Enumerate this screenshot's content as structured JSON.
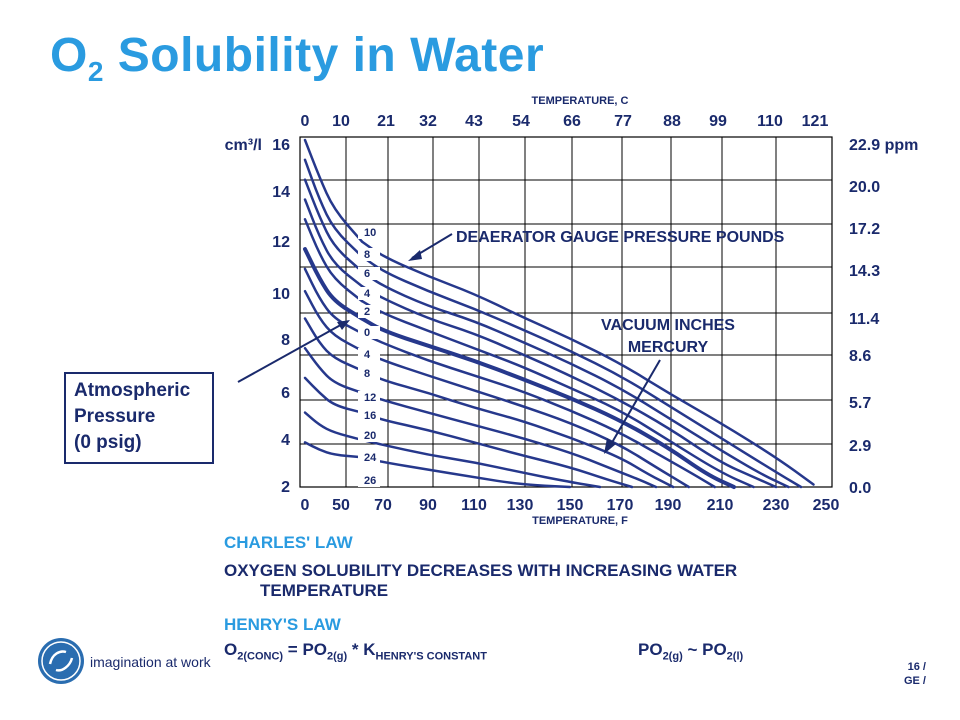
{
  "title": {
    "prefix": "O",
    "sub": "2",
    "rest": " Solubility in Water"
  },
  "chart_data": {
    "type": "line",
    "title": "",
    "x_top_label": "TEMPERATURE, C",
    "x_bottom_label": "TEMPERATURE, F",
    "x_bottom_ticks": [
      "0",
      "50",
      "70",
      "90",
      "110",
      "130",
      "150",
      "170",
      "190",
      "210",
      "230",
      "250"
    ],
    "x_top_ticks": [
      "0",
      "10",
      "21",
      "32",
      "43",
      "54",
      "66",
      "77",
      "88",
      "99",
      "110",
      "121"
    ],
    "y_left_ticks": [
      "2",
      "4",
      "6",
      "8",
      "10",
      "12",
      "14",
      "16"
    ],
    "y_left_unit": "cm³/l",
    "y_right_ticks": [
      "0.0",
      "2.9",
      "5.7",
      "8.6",
      "11.4",
      "14.3",
      "17.2",
      "20.0",
      "22.9 ppm"
    ],
    "ylim": [
      2,
      16
    ],
    "grid": true,
    "annotations": {
      "deaerator": "DEAERATOR GAUGE PRESSURE POUNDS",
      "vacuum_line1": "VACUUM INCHES",
      "vacuum_line2": "MERCURY"
    },
    "curve_labels": [
      "10",
      "8",
      "6",
      "4",
      "2",
      "0",
      "4",
      "8",
      "12",
      "16",
      "20",
      "24",
      "26"
    ],
    "series": [
      {
        "name": "10",
        "x": [
          60,
          70,
          90,
          110,
          130,
          150,
          170,
          190,
          210,
          230,
          245
        ],
        "y": [
          11.9,
          11.3,
          10.5,
          9.8,
          8.9,
          8.0,
          7.0,
          5.8,
          4.6,
          3.2,
          2.1
        ]
      },
      {
        "name": "8",
        "x": [
          60,
          70,
          90,
          110,
          130,
          150,
          170,
          190,
          210,
          230,
          240
        ],
        "y": [
          11.3,
          10.7,
          9.9,
          9.2,
          8.4,
          7.5,
          6.5,
          5.3,
          4.0,
          2.6,
          2.0
        ]
      },
      {
        "name": "6",
        "x": [
          60,
          70,
          90,
          110,
          130,
          150,
          170,
          190,
          210,
          225,
          235
        ],
        "y": [
          10.7,
          10.1,
          9.3,
          8.7,
          7.9,
          7.0,
          6.0,
          4.8,
          3.5,
          2.5,
          2.0
        ]
      },
      {
        "name": "4",
        "x": [
          60,
          70,
          90,
          110,
          130,
          150,
          170,
          190,
          210,
          222,
          230
        ],
        "y": [
          10.1,
          9.6,
          8.8,
          8.2,
          7.4,
          6.5,
          5.5,
          4.4,
          3.0,
          2.4,
          2.0
        ]
      },
      {
        "name": "2",
        "x": [
          60,
          70,
          90,
          110,
          130,
          150,
          170,
          190,
          210,
          222
        ],
        "y": [
          9.5,
          9.0,
          8.3,
          7.6,
          6.9,
          6.0,
          5.1,
          3.9,
          2.6,
          2.0
        ]
      },
      {
        "name": "0",
        "x": [
          60,
          70,
          90,
          110,
          130,
          150,
          170,
          190,
          205,
          215
        ],
        "y": [
          8.8,
          8.3,
          7.7,
          7.1,
          6.4,
          5.6,
          4.7,
          3.6,
          2.5,
          2.0
        ]
      },
      {
        "name": "4",
        "x": [
          60,
          70,
          90,
          110,
          130,
          150,
          170,
          190,
          200,
          208
        ],
        "y": [
          8.2,
          7.8,
          7.1,
          6.5,
          5.9,
          5.1,
          4.2,
          3.1,
          2.5,
          2.0
        ]
      },
      {
        "name": "8",
        "x": [
          60,
          70,
          90,
          110,
          130,
          150,
          170,
          185,
          198
        ],
        "y": [
          7.5,
          7.1,
          6.5,
          5.9,
          5.3,
          4.6,
          3.7,
          2.8,
          2.0
        ]
      },
      {
        "name": "12",
        "x": [
          60,
          70,
          90,
          110,
          130,
          150,
          170,
          182,
          192
        ],
        "y": [
          6.7,
          6.3,
          5.8,
          5.2,
          4.7,
          4.0,
          3.2,
          2.5,
          2.0
        ]
      },
      {
        "name": "16",
        "x": [
          60,
          70,
          90,
          110,
          130,
          150,
          165,
          178,
          185
        ],
        "y": [
          5.8,
          5.5,
          5.0,
          4.5,
          4.0,
          3.4,
          2.8,
          2.3,
          2.0
        ]
      },
      {
        "name": "20",
        "x": [
          60,
          70,
          90,
          110,
          130,
          150,
          165,
          175
        ],
        "y": [
          5.0,
          4.7,
          4.3,
          3.8,
          3.3,
          2.8,
          2.3,
          2.0
        ]
      },
      {
        "name": "24",
        "x": [
          60,
          70,
          90,
          110,
          130,
          150,
          162
        ],
        "y": [
          3.9,
          3.7,
          3.3,
          3.0,
          2.6,
          2.2,
          2.0
        ]
      },
      {
        "name": "26",
        "x": [
          60,
          70,
          90,
          110,
          130,
          150
        ],
        "y": [
          3.2,
          3.0,
          2.7,
          2.4,
          2.1,
          2.0
        ]
      }
    ],
    "left_curves": [
      {
        "x": [
          0,
          20,
          40,
          60
        ],
        "y": [
          16,
          14.5,
          13.2,
          11.9
        ]
      },
      {
        "x": [
          0,
          20,
          40,
          60
        ],
        "y": [
          15.2,
          13.6,
          12.4,
          11.3
        ]
      },
      {
        "x": [
          0,
          20,
          40,
          60
        ],
        "y": [
          14.4,
          12.9,
          11.7,
          10.7
        ]
      },
      {
        "x": [
          0,
          20,
          40,
          60
        ],
        "y": [
          13.6,
          12.1,
          11.0,
          10.1
        ]
      },
      {
        "x": [
          0,
          20,
          40,
          60
        ],
        "y": [
          12.8,
          11.4,
          10.4,
          9.5
        ]
      },
      {
        "x": [
          0,
          20,
          40,
          60
        ],
        "y": [
          11.6,
          10.4,
          9.5,
          8.8
        ]
      },
      {
        "x": [
          0,
          20,
          40,
          60
        ],
        "y": [
          10.8,
          9.6,
          8.8,
          8.2
        ]
      },
      {
        "x": [
          0,
          20,
          40,
          60
        ],
        "y": [
          9.9,
          8.8,
          8.1,
          7.5
        ]
      },
      {
        "x": [
          0,
          20,
          40,
          60
        ],
        "y": [
          8.8,
          7.8,
          7.2,
          6.7
        ]
      },
      {
        "x": [
          0,
          20,
          40,
          60
        ],
        "y": [
          7.6,
          6.8,
          6.2,
          5.8
        ]
      },
      {
        "x": [
          0,
          20,
          40,
          60
        ],
        "y": [
          6.4,
          5.8,
          5.3,
          5.0
        ]
      },
      {
        "x": [
          0,
          20,
          40,
          60
        ],
        "y": [
          5.0,
          4.5,
          4.2,
          3.9
        ]
      },
      {
        "x": [
          0,
          20,
          40,
          60
        ],
        "y": [
          3.8,
          3.5,
          3.3,
          3.2
        ]
      }
    ]
  },
  "callout": {
    "line1": "Atmospheric",
    "line2": "Pressure",
    "line3": "(0 psig)"
  },
  "charles": {
    "heading": "CHARLES' LAW",
    "line1": "OXYGEN SOLUBILITY DECREASES WITH INCREASING WATER",
    "line2": "TEMPERATURE"
  },
  "henry": {
    "heading": "HENRY'S LAW",
    "f1": "O",
    "f1s": "2(CONC)",
    "f2": " = PO",
    "f2s": "2(g)",
    "f3": " * K",
    "f3s": "HENRY'S CONSTANT",
    "g1": "PO",
    "g1s": "2(g)",
    "g2": " ~ PO",
    "g2s": "2(l)"
  },
  "footer": {
    "tagline": "imagination at work",
    "slide": "16 /",
    "slide2": "GE /"
  },
  "colors": {
    "title": "#2a9be0",
    "navy": "#1a2a6c",
    "curve": "#26388c"
  }
}
